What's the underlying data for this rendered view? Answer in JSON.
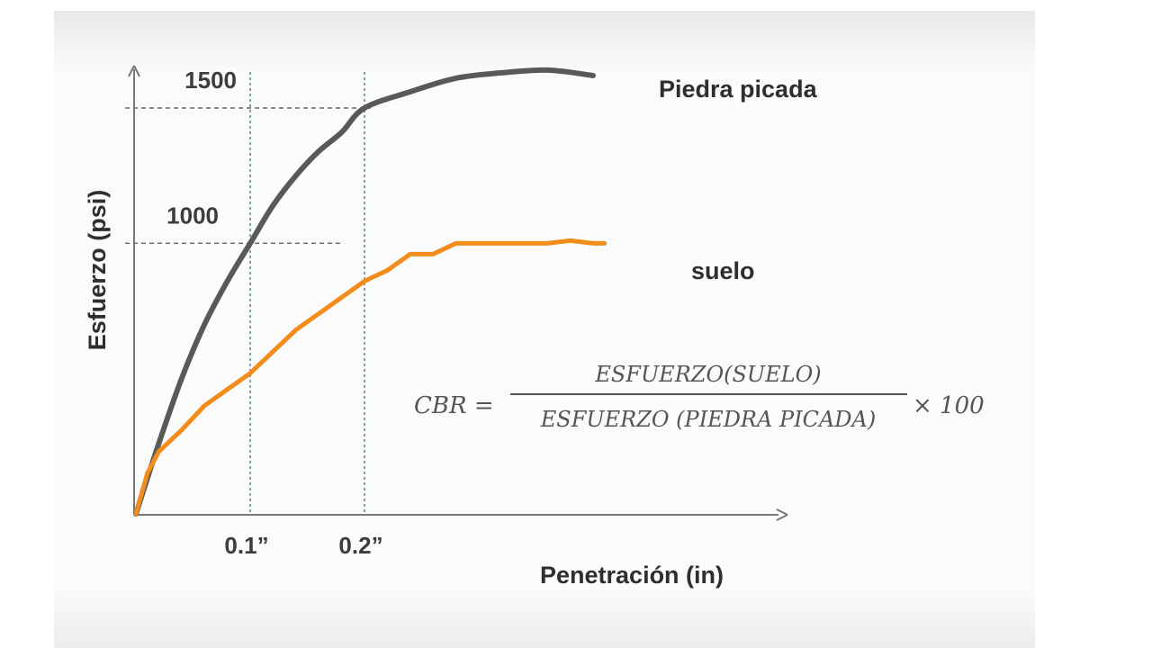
{
  "chart_data": {
    "type": "line",
    "title": "",
    "xlabel": "Penetración (in)",
    "ylabel": "Esfuerzo (psi)",
    "xlim": [
      0,
      0.52
    ],
    "ylim": [
      0,
      1750
    ],
    "grid": false,
    "x_ticks": [
      {
        "value": 0.1,
        "label": "0.1”"
      },
      {
        "value": 0.2,
        "label": "0.2”"
      }
    ],
    "y_ticks": [
      {
        "value": 1000,
        "label": "1000"
      },
      {
        "value": 1500,
        "label": "1500"
      }
    ],
    "reference_lines": [
      {
        "axis": "x",
        "value": 0.1
      },
      {
        "axis": "x",
        "value": 0.2
      },
      {
        "axis": "y",
        "value": 1000
      },
      {
        "axis": "y",
        "value": 1500
      }
    ],
    "series": [
      {
        "name": "Piedra picada",
        "color": "#595959",
        "x": [
          0,
          0.02,
          0.04,
          0.06,
          0.08,
          0.1,
          0.12,
          0.14,
          0.16,
          0.18,
          0.2,
          0.24,
          0.28,
          0.32,
          0.36,
          0.4
        ],
        "y": [
          0,
          260,
          500,
          700,
          860,
          1000,
          1140,
          1250,
          1340,
          1410,
          1500,
          1560,
          1610,
          1630,
          1640,
          1620
        ]
      },
      {
        "name": "suelo",
        "color": "#f28c1b",
        "x": [
          0,
          0.01,
          0.02,
          0.04,
          0.06,
          0.08,
          0.1,
          0.12,
          0.14,
          0.16,
          0.18,
          0.2,
          0.22,
          0.24,
          0.26,
          0.28,
          0.3,
          0.32,
          0.34,
          0.36,
          0.38,
          0.4,
          0.41
        ],
        "y": [
          0,
          150,
          230,
          310,
          400,
          460,
          520,
          600,
          680,
          740,
          800,
          860,
          900,
          960,
          960,
          1000,
          1000,
          1000,
          1000,
          1000,
          1010,
          1000,
          1000
        ]
      }
    ]
  },
  "formula": {
    "lhs": "CBR =",
    "numerator": "ESFUERZO(SUELO)",
    "denominator": "ESFUERZO (PIEDRA PICADA)",
    "multiplier": "× 100"
  }
}
